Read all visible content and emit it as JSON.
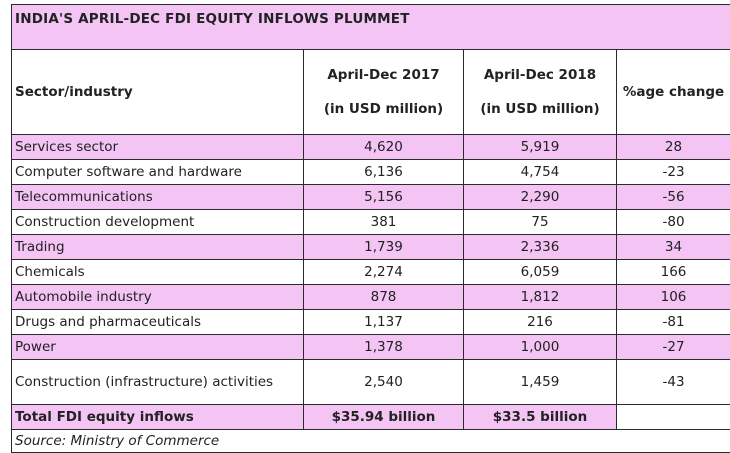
{
  "title": "INDIA'S APRIL-DEC FDI EQUITY INFLOWS PLUMMET",
  "columns": {
    "sector": "Sector/industry",
    "y2017_line1": "April-Dec 2017",
    "y2017_line2": "(in USD million)",
    "y2018_line1": "April-Dec 2018",
    "y2018_line2": "(in USD million)",
    "change": "%age change"
  },
  "rows": [
    {
      "sector": "Services sector",
      "v2017": "4,620",
      "v2018": "5,919",
      "change": "28"
    },
    {
      "sector": "Computer software and hardware",
      "v2017": "6,136",
      "v2018": "4,754",
      "change": "-23"
    },
    {
      "sector": "Telecommunications",
      "v2017": "5,156",
      "v2018": "2,290",
      "change": "-56"
    },
    {
      "sector": "Construction development",
      "v2017": "381",
      "v2018": "75",
      "change": "-80"
    },
    {
      "sector": "Trading",
      "v2017": "1,739",
      "v2018": "2,336",
      "change": "34"
    },
    {
      "sector": "Chemicals",
      "v2017": "2,274",
      "v2018": "6,059",
      "change": "166"
    },
    {
      "sector": "Automobile industry",
      "v2017": "878",
      "v2018": "1,812",
      "change": "106"
    },
    {
      "sector": "Drugs and pharmaceuticals",
      "v2017": "1,137",
      "v2018": "216",
      "change": "-81"
    },
    {
      "sector": "Power",
      "v2017": "1,378",
      "v2018": "1,000",
      "change": "-27"
    },
    {
      "sector": "Construction (infrastructure) activities",
      "v2017": "2,540",
      "v2018": "1,459",
      "change": "-43"
    }
  ],
  "total": {
    "label": "Total FDI equity inflows",
    "v2017": "$35.94 billion",
    "v2018": "$33.5 billion"
  },
  "source": "Source: Ministry of Commerce",
  "colors": {
    "highlight": "#f4c4f4",
    "border": "#2b2b2b"
  }
}
